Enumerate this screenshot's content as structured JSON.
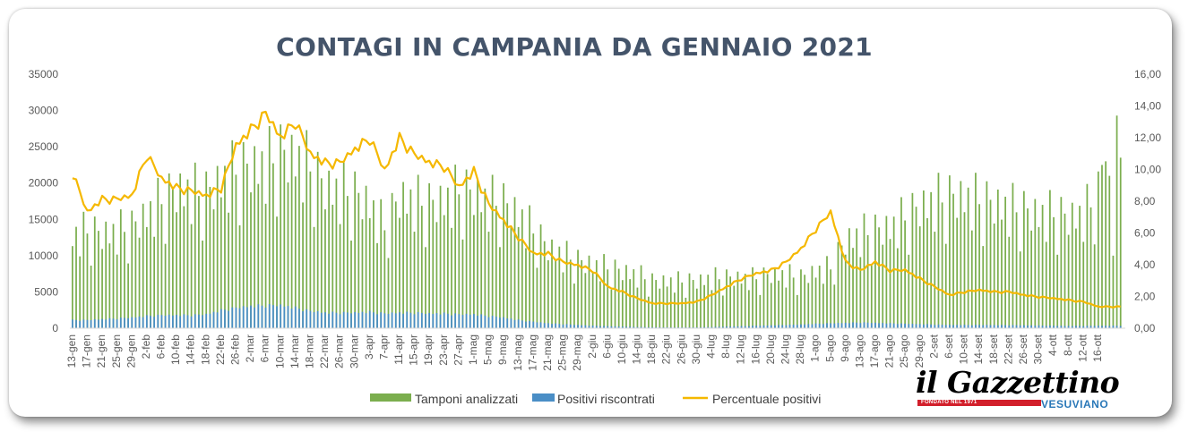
{
  "header": {
    "title": "CONTAGI IN CAMPANIA DA GENNAIO 2021"
  },
  "logo": {
    "main": "il Gazzettino",
    "tagline": "FONDATO NEL 1971",
    "sub": "VESUVIANO"
  },
  "legend": {
    "tamponi": "Tamponi analizzati",
    "positivi": "Positivi riscontrati",
    "percentuale": "Percentuale positivi"
  },
  "colors": {
    "bars": "#7bae4e",
    "positivi": "#4a8ec6",
    "line": "#f5b800",
    "title": "#44546a"
  },
  "chart_data": {
    "type": "bar",
    "title": "CONTAGI IN CAMPANIA DA GENNAIO 2021",
    "legend_position": "bottom",
    "grid": false,
    "y_left": {
      "ylim": [
        0,
        35000
      ],
      "ticks": [
        "0",
        "5000",
        "10000",
        "15000",
        "20000",
        "25000",
        "30000",
        "35000"
      ]
    },
    "y_right": {
      "ylim": [
        0,
        16
      ],
      "ticks": [
        "0,00",
        "2,00",
        "4,00",
        "6,00",
        "8,00",
        "10,00",
        "12,00",
        "14,00",
        "16,00"
      ]
    },
    "x_tick_labels": [
      "13-gen",
      "17-gen",
      "21-gen",
      "25-gen",
      "29-gen",
      "2-feb",
      "6-feb",
      "10-feb",
      "14-feb",
      "18-feb",
      "22-feb",
      "26-feb",
      "2-mar",
      "6-mar",
      "10-mar",
      "14-mar",
      "18-mar",
      "22-mar",
      "26-mar",
      "30-mar",
      "3-apr",
      "7-apr",
      "11-apr",
      "15-apr",
      "19-apr",
      "23-apr",
      "27-apr",
      "1-mag",
      "5-mag",
      "9-mag",
      "13-mag",
      "17-mag",
      "21-mag",
      "25-mag",
      "29-mag",
      "2-giu",
      "6-giu",
      "10-giu",
      "14-giu",
      "18-giu",
      "22-giu",
      "26-giu",
      "30-giu",
      "4-lug",
      "8-lug",
      "12-lug",
      "16-lug",
      "20-lug",
      "24-lug",
      "28-lug",
      "1-ago",
      "5-ago",
      "9-ago",
      "13-ago",
      "17-ago",
      "21-ago",
      "25-ago",
      "29-ago",
      "2-set",
      "6-set",
      "10-set",
      "14-set",
      "18-set",
      "22-set",
      "26-set",
      "30-set",
      "4-ott",
      "8-ott",
      "12-ott",
      "16-ott"
    ],
    "tamponi_weekly": [
      13800,
      14500,
      14000,
      14500,
      15000,
      17000,
      19000,
      20500,
      20500,
      20000,
      22000,
      23500,
      24000,
      24500,
      26000,
      25500,
      24000,
      21000,
      20500,
      20000,
      18500,
      15000,
      19500,
      19000,
      18500,
      19000,
      20500,
      20000,
      19000,
      18500,
      17000,
      14500,
      12000,
      11000,
      10000,
      9500,
      9000,
      8500,
      8000,
      7000,
      7000,
      7000,
      7000,
      7500,
      7500,
      7500,
      7500,
      8000,
      8000,
      7500,
      8500,
      9000,
      13000,
      14000,
      14500,
      15000,
      16500,
      18000,
      19000,
      19500,
      19500,
      19000,
      18500,
      18000,
      17500,
      17000,
      17000,
      16500,
      17000,
      20000
    ],
    "tamponi_last": [
      22500,
      23000,
      21000,
      10000,
      29300,
      23500
    ],
    "positivi_weekly": [
      1000,
      1000,
      1100,
      1200,
      1300,
      1500,
      1600,
      1600,
      1600,
      1700,
      2200,
      2500,
      2700,
      2800,
      2800,
      2500,
      2100,
      1900,
      1900,
      1900,
      2000,
      1800,
      1900,
      1900,
      1800,
      1800,
      1700,
      1700,
      1500,
      1300,
      1000,
      800,
      600,
      500,
      400,
      300,
      250,
      200,
      150,
      120,
      100,
      100,
      100,
      150,
      200,
      250,
      300,
      350,
      400,
      450,
      550,
      600,
      650,
      700,
      650,
      600,
      550,
      500,
      450,
      400,
      400,
      400,
      380,
      380,
      350,
      330,
      300,
      280,
      280,
      300
    ],
    "percentuale_weekly": [
      9.4,
      7.0,
      7.8,
      7.8,
      8.0,
      10.5,
      9.0,
      8.5,
      8.3,
      8.0,
      8.5,
      11.0,
      12.0,
      13.0,
      11.5,
      12.5,
      10.5,
      10.0,
      10.0,
      10.8,
      11.5,
      9.5,
      11.5,
      10.5,
      10.0,
      9.8,
      8.5,
      9.5,
      7.5,
      6.5,
      5.5,
      4.5,
      4.5,
      4.0,
      3.8,
      3.5,
      2.5,
      2.2,
      1.8,
      1.5,
      1.5,
      1.5,
      1.6,
      2.0,
      2.5,
      3.0,
      3.3,
      3.5,
      4.0,
      4.8,
      6.0,
      7.0,
      4.0,
      3.5,
      4.0,
      3.5,
      3.5,
      3.0,
      2.5,
      2.0,
      2.2,
      2.3,
      2.2,
      2.2,
      2.0,
      1.9,
      1.8,
      1.7,
      1.6,
      1.3
    ]
  }
}
